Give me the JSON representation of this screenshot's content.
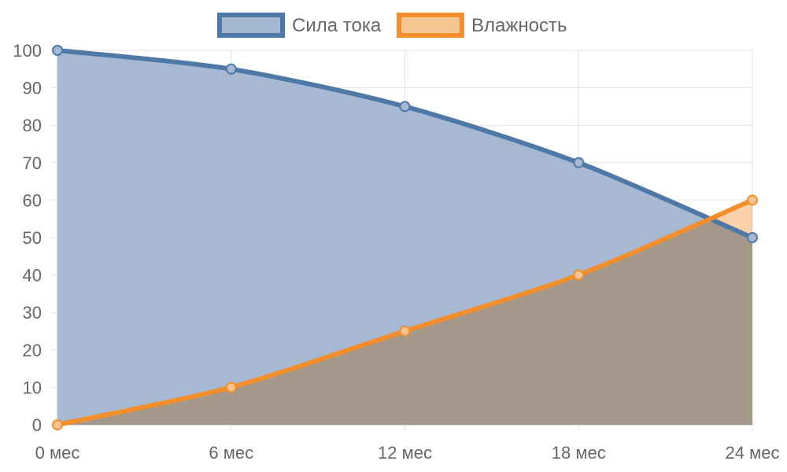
{
  "chart_data": {
    "type": "area",
    "categories": [
      "0 мес",
      "6 мес",
      "12 мес",
      "18 мес",
      "24 мес"
    ],
    "series": [
      {
        "name": "Сила тока",
        "values": [
          100,
          95,
          85,
          70,
          50
        ],
        "color": "#4e79a7",
        "fill": "#a5b8d1"
      },
      {
        "name": "Влажность",
        "values": [
          0,
          10,
          25,
          40,
          60
        ],
        "color": "#f28e2b",
        "fill": "#f8c491"
      }
    ],
    "ylim": [
      0,
      100
    ],
    "yticks": [
      "0",
      "10",
      "20",
      "30",
      "40",
      "50",
      "60",
      "70",
      "80",
      "90",
      "100"
    ],
    "grid": true,
    "legend_position": "top-center"
  }
}
